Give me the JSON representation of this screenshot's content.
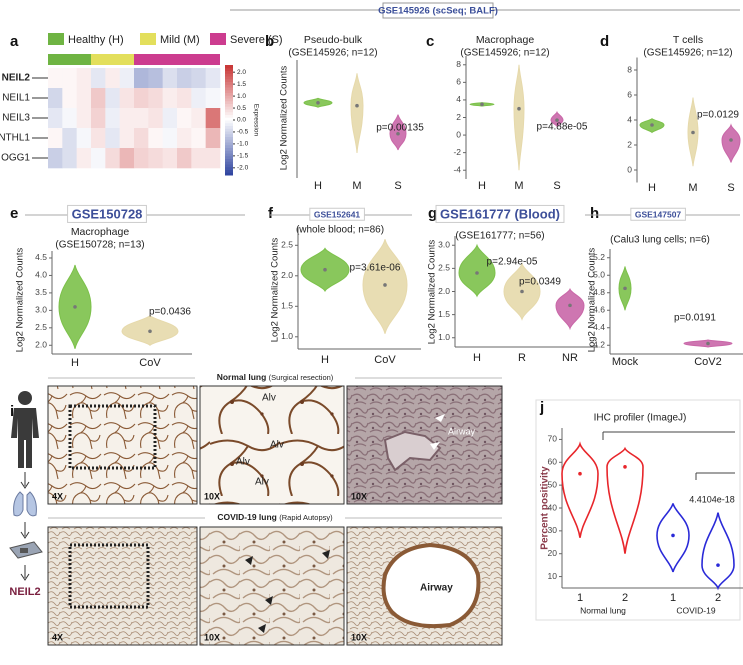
{
  "header": "GSE145926 (scSeq; BALF)",
  "panel_labels": [
    "a",
    "b",
    "c",
    "d",
    "e",
    "f",
    "g",
    "h",
    "i",
    "j"
  ],
  "chart_data": [
    {
      "type": "heatmap",
      "groups": [
        {
          "name": "Healthy (H)",
          "color": "#6fb443",
          "columns": 3
        },
        {
          "name": "Mild (M)",
          "color": "#e3df5c",
          "columns": 3
        },
        {
          "name": "Severe (S)",
          "color": "#cc3c8f",
          "columns": 6
        }
      ],
      "rows": [
        "NEIL2",
        "NEIL1",
        "NEIL3",
        "NTHL1",
        "OGG1"
      ],
      "values": [
        [
          0.1,
          0.1,
          0.2,
          -0.3,
          0.2,
          -0.2,
          -0.9,
          -0.8,
          -0.4,
          -0.6,
          -0.5,
          -0.3
        ],
        [
          -0.5,
          0.1,
          0.2,
          0.6,
          -0.3,
          0.3,
          0.5,
          0.4,
          0.2,
          0.3,
          -0.2,
          -0.1
        ],
        [
          -0.3,
          -0.1,
          0.2,
          0.5,
          -0.2,
          0.2,
          0.2,
          0.3,
          -0.2,
          0.1,
          0.2,
          1.5
        ],
        [
          0.1,
          -0.4,
          -0.1,
          0.3,
          -0.3,
          0.2,
          0.4,
          0.1,
          -0.1,
          0.2,
          0.1,
          0.8
        ],
        [
          -0.6,
          -0.4,
          0.2,
          -0.1,
          0.4,
          0.8,
          0.5,
          0.4,
          0.3,
          0.6,
          0.3,
          0.3
        ]
      ],
      "colorbar_label": "Expression",
      "zlim": [
        -2.3,
        2.3
      ],
      "zticks": [
        {
          "value": 2,
          "label": "2.0"
        },
        1.5,
        {
          "value": 1,
          "label": "1.0"
        },
        0.5,
        {
          "value": 0,
          "label": "0.0"
        },
        -0.5,
        {
          "value": -1,
          "label": "-1.0"
        },
        -1.5,
        {
          "value": -2,
          "label": "-2.0"
        }
      ]
    },
    {
      "type": "violin",
      "title": [
        "Pseudo-bulk",
        "(GSE145926; n=12)"
      ],
      "ylabel": "Log2 Normalized Counts",
      "ylim": [
        -1.5,
        6.5
      ],
      "series": [
        {
          "name": "H",
          "color": "#7cc14a",
          "min": 3.3,
          "median": 3.6,
          "max": 3.9
        },
        {
          "name": "M",
          "color": "#e6d9ab",
          "min": 0.2,
          "median": 3.4,
          "max": 5.6
        },
        {
          "name": "S",
          "color": "#c967a8",
          "min": 0.4,
          "median": 1.5,
          "max": 2.8
        }
      ],
      "annotations": [
        "p=0.00135"
      ]
    },
    {
      "type": "violin",
      "title": [
        "Macrophage",
        "(GSE145926; n=12)"
      ],
      "ylim": [
        -5,
        9
      ],
      "yticks": [
        8,
        6,
        4,
        2,
        0,
        -2,
        -4
      ],
      "series": [
        {
          "name": "H",
          "color": "#7cc14a",
          "min": 3.3,
          "median": 3.5,
          "max": 3.7
        },
        {
          "name": "M",
          "color": "#e6d9ab",
          "min": -4,
          "median": 3,
          "max": 8
        },
        {
          "name": "S",
          "color": "#c967a8",
          "min": 1,
          "median": 1.7,
          "max": 2.6
        }
      ],
      "annotations": [
        "p=4.88e-05"
      ]
    },
    {
      "type": "violin",
      "title": [
        "T cells",
        "(GSE145926; n=12)"
      ],
      "ylim": [
        -1,
        9
      ],
      "yticks": [
        8,
        6,
        4,
        2,
        0
      ],
      "series": [
        {
          "name": "H",
          "color": "#7cc14a",
          "min": 3,
          "median": 3.6,
          "max": 4.1
        },
        {
          "name": "M",
          "color": "#e6d9ab",
          "min": 0.3,
          "median": 3,
          "max": 5.8
        },
        {
          "name": "S",
          "color": "#c967a8",
          "min": 0.6,
          "median": 2.4,
          "max": 3.6
        }
      ],
      "annotations": [
        "p=0.0129"
      ]
    },
    {
      "type": "violin",
      "dataset": "GSE150728",
      "title": [
        "Macrophage",
        "(GSE150728; n=13)"
      ],
      "ylabel": "Log2 Normalized Counts",
      "ylim": [
        1.75,
        4.7
      ],
      "yticks": [
        4.5,
        {
          "value": 4,
          "label": "4.0"
        },
        3.5,
        {
          "value": 3,
          "label": "3.0"
        },
        2.5,
        {
          "value": 2,
          "label": "2.0"
        }
      ],
      "series": [
        {
          "name": "H",
          "color": "#7cc14a",
          "min": 1.9,
          "median": 3.1,
          "max": 4.3
        },
        {
          "name": "CoV",
          "color": "#e6d9ab",
          "min": 2,
          "median": 2.4,
          "max": 2.85
        }
      ],
      "annotations": [
        "p=0.0436"
      ]
    },
    {
      "type": "violin",
      "dataset": "GSE152641",
      "title": [
        "(whole blood; n=86)"
      ],
      "ylabel": "Log2 Normalized Counts",
      "ylim": [
        0.8,
        2.8
      ],
      "yticks": [
        2.5,
        {
          "value": 2,
          "label": "2.0"
        },
        1.5,
        {
          "value": 1,
          "label": "1.0"
        }
      ],
      "series": [
        {
          "name": "H",
          "color": "#7cc14a",
          "min": 1.75,
          "median": 2.1,
          "max": 2.45
        },
        {
          "name": "CoV",
          "color": "#e6d9ab",
          "min": 1.05,
          "median": 1.85,
          "max": 2.6
        }
      ],
      "annotations": [
        "p=3.61e-06"
      ]
    },
    {
      "type": "violin",
      "dataset": "GSE161777 (Blood)",
      "title": [
        "(GSE161777; n=56)"
      ],
      "ylabel": "Log2 Normalized Counts",
      "ylim": [
        0.8,
        3.2
      ],
      "yticks": [
        {
          "value": 3,
          "label": "3.0"
        },
        2.5,
        {
          "value": 2,
          "label": "2.0"
        },
        1.5,
        {
          "value": 1,
          "label": "1.0"
        }
      ],
      "series": [
        {
          "name": "H",
          "color": "#7cc14a",
          "min": 1.9,
          "median": 2.4,
          "max": 3
        },
        {
          "name": "R",
          "color": "#e6d9ab",
          "min": 1.4,
          "median": 2,
          "max": 2.6
        },
        {
          "name": "NR",
          "color": "#c967a8",
          "min": 1.2,
          "median": 1.7,
          "max": 2.05
        }
      ],
      "annotations": [
        "p=2.94e-05",
        "p=0.0349"
      ]
    },
    {
      "type": "violin",
      "dataset": "GSE147507",
      "title": [
        "(Calu3 lung cells; n=6)"
      ],
      "ylabel": "Log2 Normalized Counts",
      "ylim": [
        4.1,
        5.3
      ],
      "yticks": [
        5.2,
        {
          "value": 5,
          "label": "5.0"
        },
        4.8,
        4.6,
        4.4,
        4.2
      ],
      "series": [
        {
          "name": "Mock",
          "color": "#7cc14a",
          "min": 4.6,
          "median": 4.85,
          "max": 5.1
        },
        {
          "name": "CoV2",
          "color": "#c967a8",
          "min": 4.18,
          "median": 4.22,
          "max": 4.26
        }
      ],
      "annotations": [
        "p=0.0191"
      ]
    },
    {
      "type": "violin",
      "style": "outline",
      "title": [
        "IHC profiler (ImageJ)"
      ],
      "ylabel": "Percent positivity",
      "ylim": [
        5,
        75
      ],
      "yticks": [
        70,
        60,
        50,
        40,
        30,
        20,
        10
      ],
      "series": [
        {
          "name": "1",
          "color": "#e8262b",
          "min": 27,
          "median": 55,
          "max": 68
        },
        {
          "name": "2",
          "color": "#e8262b",
          "min": 20,
          "median": 58,
          "max": 66
        },
        {
          "name": "1",
          "color": "#2a2ad8",
          "min": 12,
          "median": 28,
          "max": 42
        },
        {
          "name": "2",
          "color": "#2a2ad8",
          "min": 5,
          "median": 15,
          "max": 38
        }
      ],
      "group_labels": [
        "Normal lung",
        "COVID-19"
      ],
      "annotations": [
        "4.4104e-18"
      ]
    }
  ],
  "histology": {
    "normal_title": {
      "bold": "Normal lung",
      "rest": "(Surgical resection)"
    },
    "covid_title": {
      "bold": "COVID-19 lung",
      "rest": "(Rapid Autopsy)"
    },
    "row1": [
      {
        "mag": "4X",
        "labels": []
      },
      {
        "mag": "10X",
        "labels": [
          "Alv",
          "Alv",
          "Alv",
          "Alv"
        ]
      },
      {
        "mag": "10X",
        "labels": [
          "Airway"
        ]
      }
    ],
    "row2": [
      {
        "mag": "4X",
        "labels": []
      },
      {
        "mag": "10X",
        "labels": []
      },
      {
        "mag": "10X",
        "labels": [
          "Airway"
        ]
      }
    ],
    "workflow_label": "NEIL2"
  }
}
